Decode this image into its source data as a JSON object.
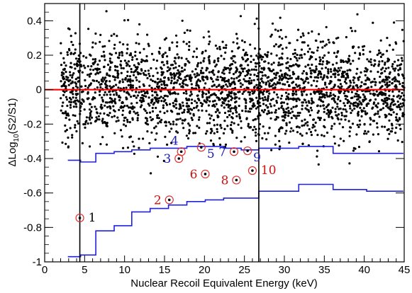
{
  "chart_data": {
    "type": "scatter",
    "title": "",
    "xlabel": "Nuclear Recoil Equivalent Energy (keV)",
    "ylabel": {
      "prefix": "ΔLog",
      "subscript": "10",
      "suffix": "(S2/S1)"
    },
    "xlim": [
      0,
      45
    ],
    "ylim": [
      -1.0,
      0.5
    ],
    "x_ticks": [
      {
        "value": 0,
        "label": "0"
      },
      {
        "value": 5,
        "label": "5"
      },
      {
        "value": 10,
        "label": "10"
      },
      {
        "value": 15,
        "label": "15"
      },
      {
        "value": 20,
        "label": "20"
      },
      {
        "value": 25,
        "label": "25"
      },
      {
        "value": 30,
        "label": "30"
      },
      {
        "value": 35,
        "label": "35"
      },
      {
        "value": 40,
        "label": "40"
      },
      {
        "value": 45,
        "label": "45"
      }
    ],
    "y_ticks": [
      {
        "value": 0.4,
        "label": "0.4"
      },
      {
        "value": 0.2,
        "label": "0.2"
      },
      {
        "value": 0,
        "label": "0"
      },
      {
        "value": -0.2,
        "label": "-0.2"
      },
      {
        "value": -0.4,
        "label": "-0.4"
      },
      {
        "value": -0.6,
        "label": "-0.6"
      },
      {
        "value": -0.8,
        "label": "-0.8"
      },
      {
        "value": -1.0,
        "label": "-1"
      }
    ],
    "grid": false,
    "colors": {
      "points": "#000000",
      "zero_line": "#ff0000",
      "bands": "#2020e0",
      "circled": "#e03030",
      "label_red": "#cc1111",
      "label_blue": "#1a1ab0"
    },
    "zero_line": 0,
    "vertical_lines": [
      4.4,
      26.8
    ],
    "bands": [
      {
        "name": "upper",
        "steps": [
          [
            2.9,
            -0.41
          ],
          [
            4.5,
            -0.42
          ],
          [
            6.4,
            -0.37
          ],
          [
            8.7,
            -0.36
          ],
          [
            10.9,
            -0.35
          ],
          [
            13.2,
            -0.34
          ],
          [
            15.5,
            -0.34
          ],
          [
            17.8,
            -0.33
          ],
          [
            20.1,
            -0.33
          ],
          [
            22.4,
            -0.34
          ],
          [
            24.6,
            -0.35
          ],
          [
            26.8,
            -0.34
          ],
          [
            31.8,
            -0.33
          ],
          [
            36.1,
            -0.37
          ],
          [
            40.3,
            -0.37
          ],
          [
            44.9,
            -0.37
          ]
        ]
      },
      {
        "name": "lower",
        "steps": [
          [
            2.9,
            -0.97
          ],
          [
            4.5,
            -0.96
          ],
          [
            6.4,
            -0.82
          ],
          [
            8.7,
            -0.79
          ],
          [
            10.9,
            -0.71
          ],
          [
            13.2,
            -0.69
          ],
          [
            15.5,
            -0.67
          ],
          [
            17.8,
            -0.65
          ],
          [
            20.1,
            -0.64
          ],
          [
            22.4,
            -0.63
          ],
          [
            24.6,
            -0.63
          ],
          [
            26.8,
            -0.59
          ],
          [
            31.8,
            -0.55
          ],
          [
            36.1,
            -0.58
          ],
          [
            40.3,
            -0.59
          ],
          [
            44.9,
            -0.59
          ]
        ]
      }
    ],
    "circled_events": [
      {
        "label": "1",
        "x": 4.4,
        "y": -0.745,
        "label_color": "#000000",
        "label_side": "right"
      },
      {
        "label": "2",
        "x": 15.6,
        "y": -0.64,
        "label_color": "#cc1111",
        "label_side": "left"
      },
      {
        "label": "3",
        "x": 16.8,
        "y": -0.4,
        "label_color": "#1a1ab0",
        "label_side": "left"
      },
      {
        "label": "4",
        "x": 17.1,
        "y": -0.36,
        "label_color": "#1a1ab0",
        "label_side": "upleft"
      },
      {
        "label": "5",
        "x": 19.6,
        "y": -0.335,
        "label_color": "#1a1ab0",
        "label_side": "downright"
      },
      {
        "label": "6",
        "x": 20.1,
        "y": -0.49,
        "label_color": "#cc1111",
        "label_side": "left"
      },
      {
        "label": "7",
        "x": 23.7,
        "y": -0.36,
        "label_color": "#1a1ab0",
        "label_side": "left"
      },
      {
        "label": "8",
        "x": 24.0,
        "y": -0.525,
        "label_color": "#cc1111",
        "label_side": "left"
      },
      {
        "label": "9",
        "x": 25.4,
        "y": -0.355,
        "label_color": "#1a1ab0",
        "label_side": "downright"
      },
      {
        "label": "10",
        "x": 26.0,
        "y": -0.47,
        "label_color": "#cc1111",
        "label_side": "right"
      }
    ],
    "points": {
      "description_note": "",
      "count": 2600,
      "x_range": [
        2.0,
        45.0
      ],
      "y_mean": 0.0,
      "y_sd": 0.15,
      "seed": 7
    }
  }
}
